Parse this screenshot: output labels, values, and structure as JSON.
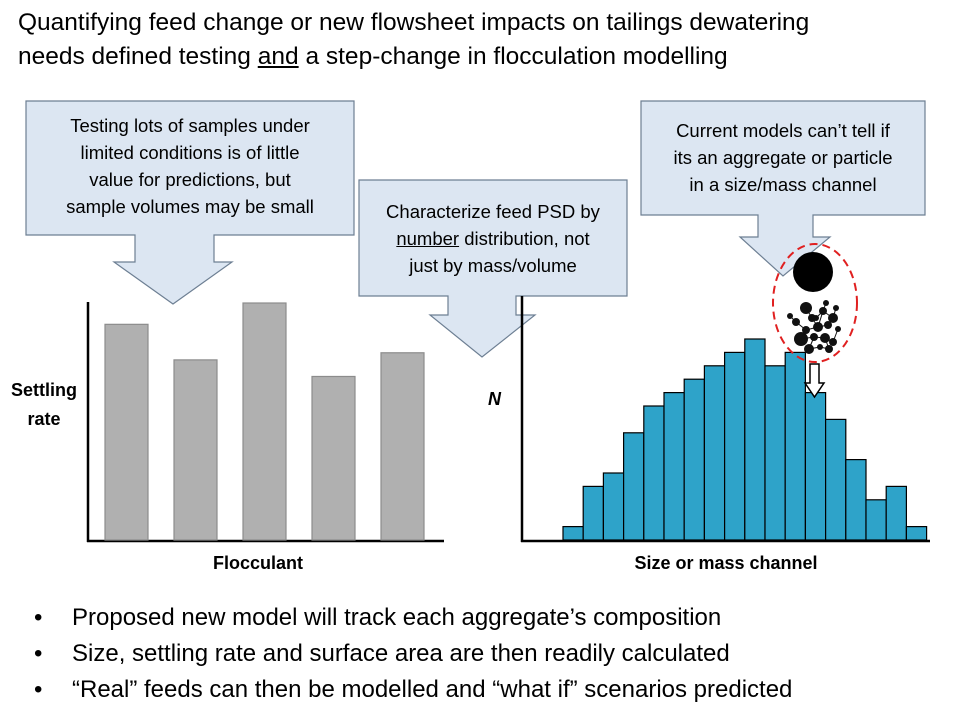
{
  "title": {
    "line1": "Quantifying feed change or new flowsheet impacts on tailings dewatering",
    "line2_before": "needs defined testing ",
    "line2_underlined": "and",
    "line2_after": " a step-change in flocculation modelling"
  },
  "callouts": {
    "left": [
      "Testing lots of samples under",
      "limited conditions is of little",
      "value for predictions, but",
      "sample volumes may be small"
    ],
    "middle": {
      "line1": "Characterize feed PSD by",
      "line2_underlined": "number",
      "line2_after": " distribution, not",
      "line3": "just by mass/volume"
    },
    "right": [
      "Current models can’t tell if",
      "its an aggregate or particle",
      "in a size/mass channel"
    ]
  },
  "colors": {
    "callout_fill": "#dce6f2",
    "callout_stroke": "#6d7f93",
    "bar_fill": "#b0b0b0",
    "hist_fill": "#2ea3c9",
    "ellipse_stroke": "#e02020"
  },
  "chart_data": [
    {
      "type": "bar",
      "categories": [
        "",
        "",
        "",
        "",
        ""
      ],
      "values": [
        0.91,
        0.76,
        1.0,
        0.69,
        0.79
      ],
      "xlabel": "Flocculant",
      "ylabel": "Settling rate"
    },
    {
      "type": "bar",
      "values": [
        1,
        4,
        5,
        8,
        10,
        11,
        12,
        13,
        14,
        15,
        13,
        14,
        11,
        9,
        6,
        3,
        4,
        1
      ],
      "xlabel": "Size or mass channel",
      "ylabel": "N"
    }
  ],
  "bullets": [
    "Proposed new model will track each aggregate’s composition",
    "Size, settling rate and surface area are then readily calculated",
    "“Real” feeds can then be modelled and “what if” scenarios predicted"
  ],
  "bullet_symbol": "•"
}
